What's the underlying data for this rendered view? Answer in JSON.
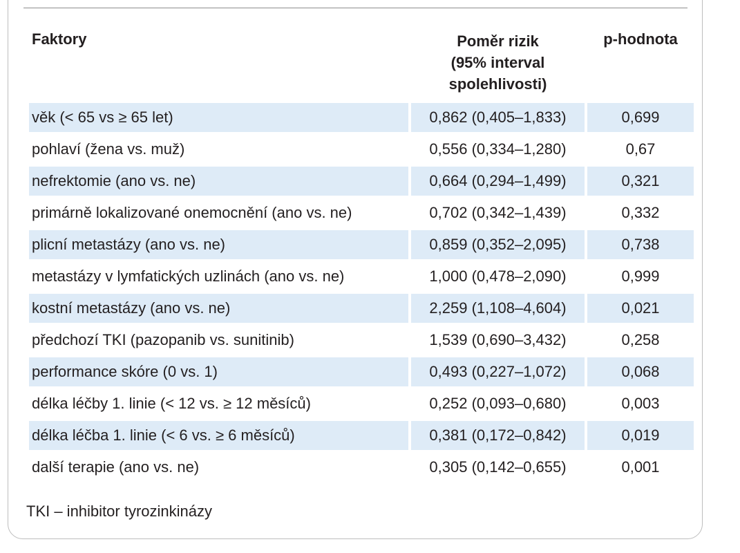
{
  "table": {
    "headers": {
      "factor": "Faktory",
      "hazard_ratio_lines": [
        "Poměr rizik",
        "(95% interval",
        "spolehlivosti)"
      ],
      "p_value": "p-hodnota"
    },
    "rows": [
      {
        "factor": "věk (< 65 vs ≥ 65 let)",
        "hr": "0,862 (0,405–1,833)",
        "p": "0,699"
      },
      {
        "factor": "pohlaví (žena vs. muž)",
        "hr": "0,556 (0,334–1,280)",
        "p": "0,67"
      },
      {
        "factor": "nefrektomie (ano vs. ne)",
        "hr": "0,664 (0,294–1,499)",
        "p": "0,321"
      },
      {
        "factor": "primárně lokalizované onemocnění (ano vs. ne)",
        "hr": "0,702 (0,342–1,439)",
        "p": "0,332"
      },
      {
        "factor": "plicní metastázy (ano vs. ne)",
        "hr": "0,859 (0,352–2,095)",
        "p": "0,738"
      },
      {
        "factor": "metastázy v lymfatických uzlinách (ano vs. ne)",
        "hr": "1,000 (0,478–2,090)",
        "p": "0,999"
      },
      {
        "factor": "kostní metastázy (ano vs. ne)",
        "hr": "2,259 (1,108–4,604)",
        "p": "0,021"
      },
      {
        "factor": "předchozí TKI (pazopanib vs. sunitinib)",
        "hr": "1,539 (0,690–3,432)",
        "p": "0,258"
      },
      {
        "factor": "performance skóre (0 vs. 1)",
        "hr": "0,493 (0,227–1,072)",
        "p": "0,068"
      },
      {
        "factor": "délka léčby 1. linie (< 12 vs. ≥ 12 měsíců)",
        "hr": "0,252 (0,093–0,680)",
        "p": "0,003"
      },
      {
        "factor": "délka léčba 1. linie (< 6 vs. ≥ 6 měsíců)",
        "hr": "0,381 (0,172–0,842)",
        "p": "0,019"
      },
      {
        "factor": "další terapie (ano vs. ne)",
        "hr": "0,305 (0,142–0,655)",
        "p": "0,001"
      }
    ]
  },
  "footnote": "TKI – inhibitor tyrozinkinázy",
  "colors": {
    "row_shade": "#deebf7",
    "text": "#231f20",
    "border": "#bdbdbd"
  }
}
